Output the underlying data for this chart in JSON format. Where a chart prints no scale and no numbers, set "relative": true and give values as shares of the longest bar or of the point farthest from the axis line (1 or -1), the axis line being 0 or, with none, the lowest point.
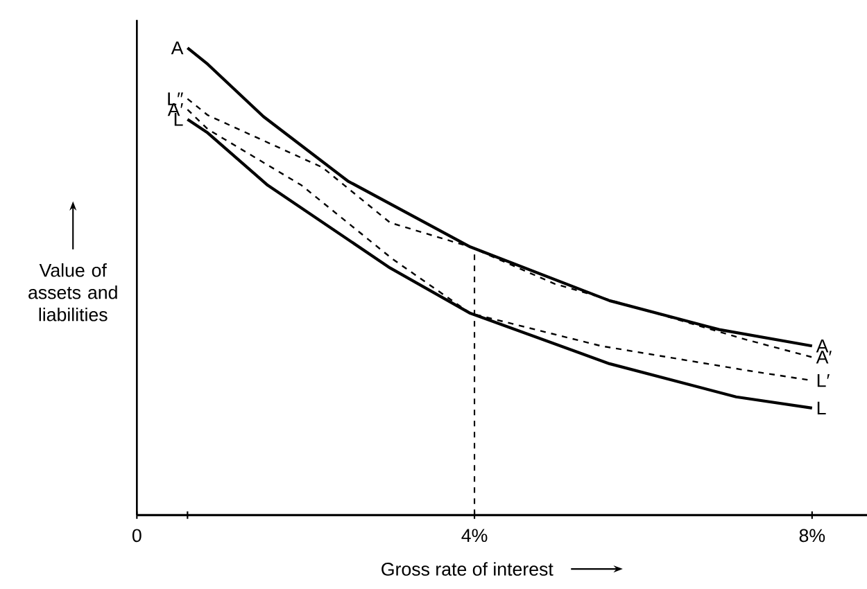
{
  "chart_data": {
    "type": "line",
    "xlabel": "Gross rate of interest",
    "ylabel": "Value of assets and liabilities",
    "relative": true,
    "marker": "none",
    "xlim": [
      0,
      8.7
    ],
    "xticks": [
      0,
      {
        "value": 0.6,
        "label": null
      },
      {
        "value": 4,
        "label": "4%"
      },
      {
        "value": 8,
        "label": "8%"
      }
    ],
    "series": [
      {
        "name": "A",
        "color": "#000000",
        "line_style": "solid",
        "x": [
          0.6,
          0.84,
          1.5,
          2.5,
          3.95,
          5.6,
          6.9,
          8
        ],
        "values": [
          1,
          0.965,
          0.853,
          0.715,
          0.574,
          0.459,
          0.397,
          0.362
        ]
      },
      {
        "name": "A′",
        "color": "#000000",
        "line_style": "dashed",
        "x": [
          0.6,
          0.84,
          2.2,
          3.0,
          3.95,
          4.95,
          7.25,
          8
        ],
        "values": [
          0.891,
          0.856,
          0.744,
          0.626,
          0.574,
          0.495,
          0.374,
          0.338
        ]
      },
      {
        "name": "L′",
        "color": "#000000",
        "line_style": "dashed",
        "x": [
          0.6,
          0.84,
          1.95,
          3.03,
          3.95,
          5.5,
          7.25,
          8
        ],
        "values": [
          0.868,
          0.826,
          0.706,
          0.548,
          0.432,
          0.362,
          0.309,
          0.288
        ]
      },
      {
        "name": "L",
        "color": "#000000",
        "line_style": "solid",
        "x": [
          0.6,
          0.84,
          1.55,
          3.0,
          3.95,
          5.6,
          7.1,
          8
        ],
        "values": [
          0.847,
          0.818,
          0.706,
          0.529,
          0.432,
          0.324,
          0.253,
          0.229
        ]
      }
    ],
    "annotations": [
      "A",
      "L″",
      "A′",
      "L"
    ],
    "ref_lines": [
      {
        "axis": "x",
        "value": 4,
        "line_style": "dashed"
      }
    ]
  }
}
